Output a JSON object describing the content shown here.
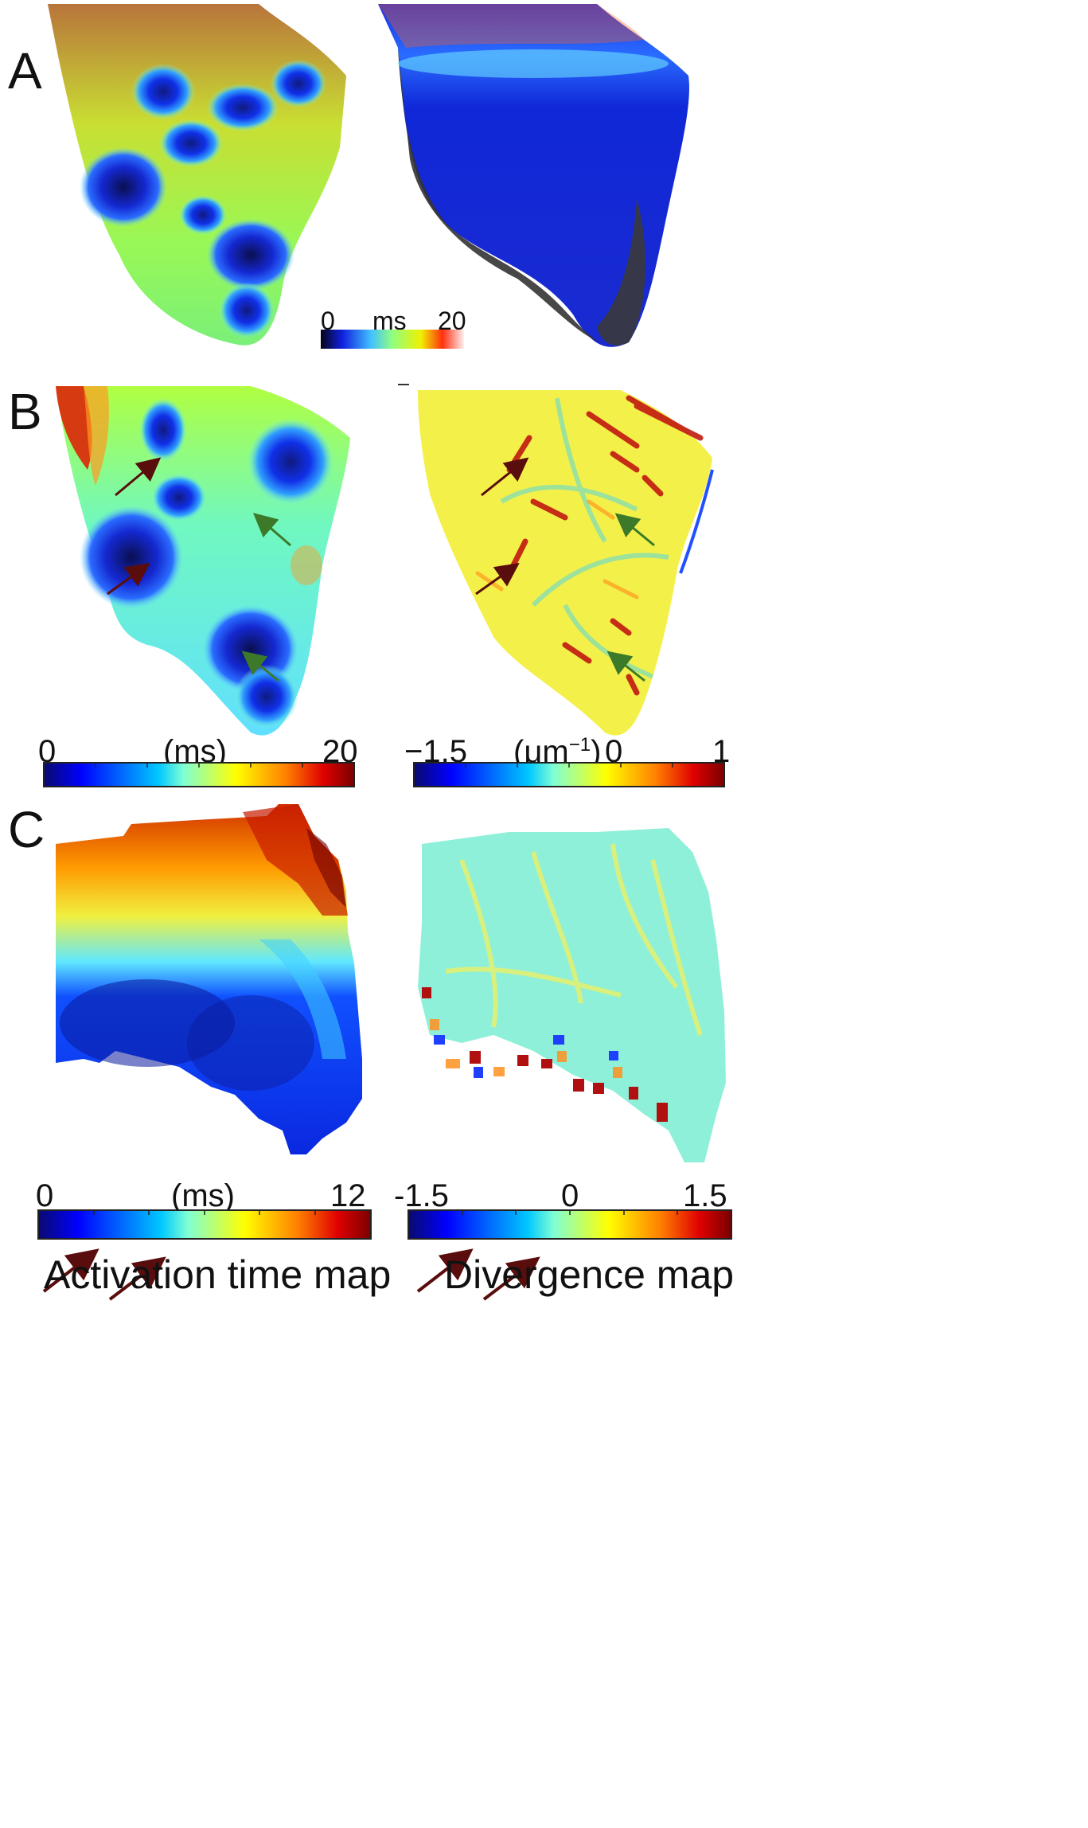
{
  "panels": {
    "a": {
      "letter": "A",
      "colorbar": {
        "min": "0",
        "unit": "ms",
        "max": "20"
      }
    },
    "b": {
      "letter": "B",
      "left_colorbar": {
        "min": "0",
        "unit": "(ms)",
        "max": "20"
      },
      "right_colorbar": {
        "min": "−1.5",
        "unit_base": "(μm",
        "unit_exp": "−1",
        "unit_close": ")",
        "mid": "0",
        "max": "1"
      }
    },
    "c": {
      "letter": "C",
      "left_colorbar": {
        "min": "0",
        "unit": "(ms)",
        "max": "12"
      },
      "right_colorbar": {
        "min": "-1.5",
        "mid": "0",
        "max": "1.5"
      },
      "left_caption": "Activation time map",
      "right_caption": "Divergence map"
    }
  },
  "colors": {
    "jet_low": "#00008f",
    "jet_mid": "#7fffff",
    "jet_high": "#800000",
    "dark_red_arrow": "#5a0d0d",
    "green_arrow": "#3c7a2a",
    "tissue_shadow": "#3a3a3a"
  }
}
